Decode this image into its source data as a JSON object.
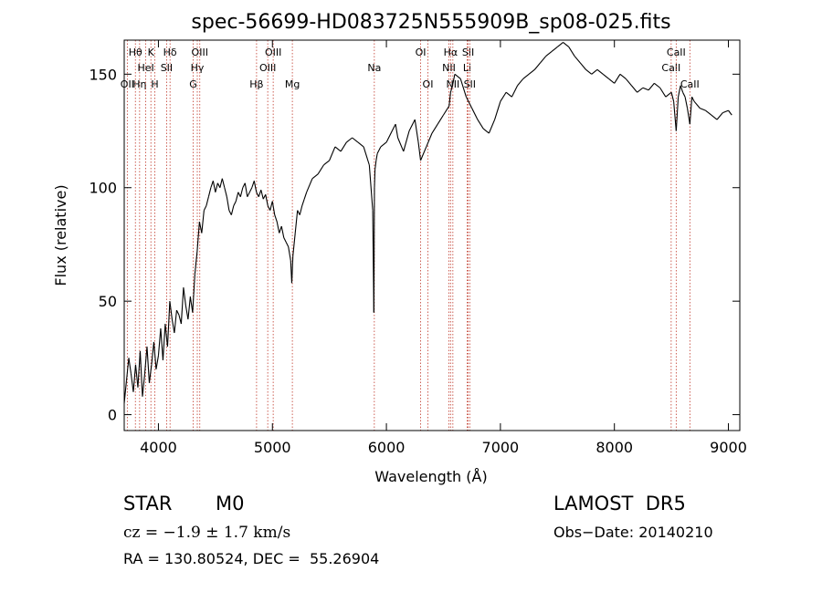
{
  "chart_data": {
    "type": "line",
    "title": "spec-56699-HD083725N555909B_sp08-025.fits",
    "xlabel": "Wavelength (Å)",
    "ylabel": "Flux (relative)",
    "xlim": [
      3700,
      9100
    ],
    "ylim": [
      -7,
      165
    ],
    "xticks": [
      4000,
      5000,
      6000,
      7000,
      8000,
      9000
    ],
    "xtick_labels": [
      "4000",
      "5000",
      "6000",
      "7000",
      "8000",
      "9000"
    ],
    "yticks": [
      0,
      50,
      100,
      150
    ],
    "ytick_labels": [
      "0",
      "50",
      "100",
      "150"
    ],
    "grid": false,
    "series": [
      {
        "x": [
          3700,
          3720,
          3740,
          3760,
          3780,
          3800,
          3820,
          3840,
          3860,
          3880,
          3900,
          3920,
          3940,
          3960,
          3980,
          4000,
          4020,
          4040,
          4060,
          4080,
          4100,
          4120,
          4140,
          4160,
          4180,
          4200,
          4220,
          4240,
          4260,
          4280,
          4300,
          4320,
          4340,
          4360,
          4380,
          4400,
          4420,
          4440,
          4460,
          4480,
          4500,
          4520,
          4540,
          4560,
          4580,
          4600,
          4620,
          4640,
          4660,
          4680,
          4700,
          4720,
          4740,
          4760,
          4780,
          4800,
          4820,
          4840,
          4860,
          4880,
          4900,
          4920,
          4940,
          4960,
          4980,
          5000,
          5020,
          5040,
          5060,
          5080,
          5100,
          5120,
          5140,
          5160,
          5170,
          5180,
          5200,
          5220,
          5240,
          5260,
          5280,
          5300,
          5350,
          5400,
          5450,
          5500,
          5550,
          5600,
          5650,
          5700,
          5750,
          5800,
          5850,
          5880,
          5890,
          5895,
          5900,
          5910,
          5920,
          5950,
          6000,
          6050,
          6080,
          6100,
          6150,
          6200,
          6250,
          6280,
          6300,
          6350,
          6400,
          6450,
          6500,
          6550,
          6563,
          6580,
          6600,
          6650,
          6700,
          6750,
          6800,
          6850,
          6900,
          6950,
          7000,
          7050,
          7100,
          7150,
          7200,
          7250,
          7300,
          7350,
          7400,
          7450,
          7500,
          7550,
          7600,
          7650,
          7700,
          7750,
          7800,
          7850,
          7900,
          7950,
          8000,
          8050,
          8100,
          8150,
          8200,
          8250,
          8300,
          8350,
          8400,
          8450,
          8500,
          8520,
          8542,
          8560,
          8580,
          8600,
          8620,
          8640,
          8662,
          8680,
          8700,
          8750,
          8800,
          8850,
          8900,
          8950,
          9000,
          9030
        ],
        "y": [
          5,
          15,
          25,
          18,
          10,
          22,
          12,
          28,
          8,
          18,
          30,
          14,
          22,
          32,
          20,
          26,
          38,
          24,
          40,
          30,
          50,
          42,
          36,
          46,
          44,
          40,
          56,
          48,
          42,
          52,
          45,
          62,
          72,
          85,
          80,
          90,
          92,
          96,
          100,
          103,
          98,
          102,
          100,
          104,
          100,
          96,
          90,
          88,
          92,
          94,
          98,
          96,
          100,
          102,
          96,
          98,
          100,
          103,
          98,
          96,
          99,
          95,
          97,
          92,
          90,
          94,
          88,
          85,
          80,
          83,
          78,
          76,
          74,
          68,
          58,
          70,
          80,
          90,
          88,
          92,
          95,
          98,
          104,
          106,
          110,
          112,
          118,
          116,
          120,
          122,
          120,
          118,
          110,
          90,
          45,
          100,
          108,
          112,
          115,
          118,
          120,
          125,
          128,
          122,
          116,
          125,
          130,
          120,
          112,
          118,
          124,
          128,
          132,
          136,
          142,
          145,
          150,
          148,
          140,
          135,
          130,
          126,
          124,
          130,
          138,
          142,
          140,
          145,
          148,
          150,
          152,
          155,
          158,
          160,
          162,
          164,
          162,
          158,
          155,
          152,
          150,
          152,
          150,
          148,
          146,
          150,
          148,
          145,
          142,
          144,
          143,
          146,
          144,
          140,
          142,
          138,
          125,
          140,
          145,
          142,
          140,
          135,
          128,
          140,
          138,
          135,
          134,
          132,
          130,
          133,
          134,
          132
        ]
      }
    ],
    "lines": [
      {
        "x": 3727,
        "label": "OII",
        "row": 3
      },
      {
        "x": 3798,
        "label": "Hθ",
        "row": 1
      },
      {
        "x": 3835,
        "label": "Hη",
        "row": 3
      },
      {
        "x": 3889,
        "label": "HeI",
        "row": 2
      },
      {
        "x": 3934,
        "label": "K",
        "row": 1
      },
      {
        "x": 3969,
        "label": "H",
        "row": 3
      },
      {
        "x": 4072,
        "label": "SII",
        "row": 2
      },
      {
        "x": 4102,
        "label": "Hδ",
        "row": 1
      },
      {
        "x": 4305,
        "label": "G",
        "row": 3
      },
      {
        "x": 4341,
        "label": "Hγ",
        "row": 2
      },
      {
        "x": 4363,
        "label": "OIII",
        "row": 1
      },
      {
        "x": 4861,
        "label": "Hβ",
        "row": 3
      },
      {
        "x": 4959,
        "label": "OIII",
        "row": 2
      },
      {
        "x": 5007,
        "label": "OIII",
        "row": 1
      },
      {
        "x": 5175,
        "label": "Mg",
        "row": 3
      },
      {
        "x": 5894,
        "label": "Na",
        "row": 2
      },
      {
        "x": 6300,
        "label": "OI",
        "row": 1
      },
      {
        "x": 6364,
        "label": "OI",
        "row": 3
      },
      {
        "x": 6548,
        "label": "NII",
        "row": 2
      },
      {
        "x": 6563,
        "label": "Hα",
        "row": 1
      },
      {
        "x": 6583,
        "label": "NII",
        "row": 3
      },
      {
        "x": 6708,
        "label": "Li",
        "row": 2
      },
      {
        "x": 6717,
        "label": "SII",
        "row": 1
      },
      {
        "x": 6731,
        "label": "SII",
        "row": 3
      },
      {
        "x": 8498,
        "label": "CaII",
        "row": 2
      },
      {
        "x": 8542,
        "label": "CaII",
        "row": 1
      },
      {
        "x": 8662,
        "label": "CaII",
        "row": 3
      }
    ]
  },
  "info": {
    "object_type": "STAR",
    "subclass": "M0",
    "survey": "LAMOST  DR5",
    "cz": "cz = −1.9 ± 1.7 km/s",
    "obs_date": "Obs−Date: 20140210",
    "coords": "RA = 130.80524, DEC =  55.26904"
  }
}
